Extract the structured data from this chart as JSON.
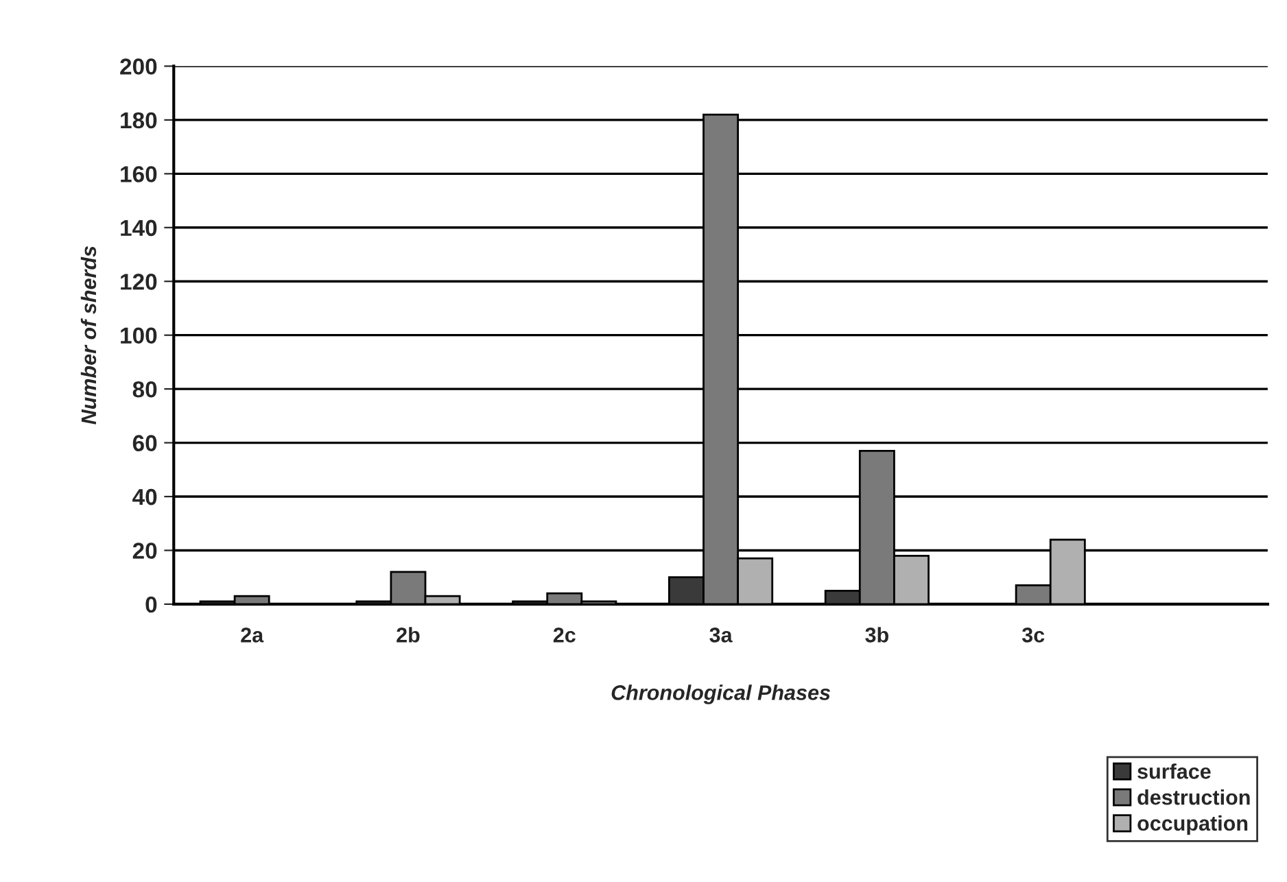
{
  "chart_data": {
    "type": "bar",
    "xlabel": "Chronological Phases",
    "ylabel": "Number of sherds",
    "categories": [
      "2a",
      "2b",
      "2c",
      "3a",
      "3b",
      "3c",
      null
    ],
    "series": [
      {
        "name": "surface",
        "color": "#3a3a3a",
        "values": [
          1,
          1,
          1,
          10,
          5,
          null,
          null
        ]
      },
      {
        "name": "destruction",
        "color": "#7a7a7a",
        "values": [
          3,
          12,
          4,
          182,
          57,
          7,
          null
        ]
      },
      {
        "name": "occupation",
        "color": "#b0b0b0",
        "values": [
          null,
          3,
          1,
          17,
          18,
          24,
          null
        ]
      }
    ],
    "ylim": [
      0,
      200
    ],
    "yticks": [
      0,
      20,
      40,
      60,
      80,
      100,
      120,
      140,
      160,
      180,
      200
    ],
    "grid": "y",
    "legend": "bottom right"
  }
}
